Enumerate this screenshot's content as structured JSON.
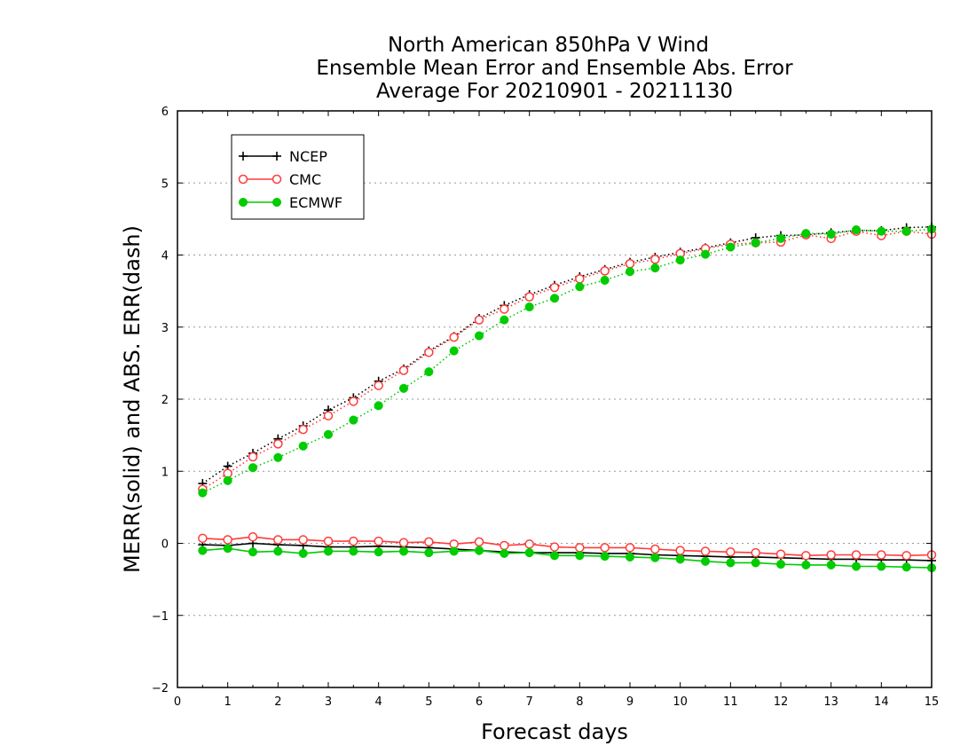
{
  "chart_data": {
    "type": "line",
    "title": [
      "North American 850hPa V Wind",
      "Ensemble Mean Error and Ensemble Abs. Error",
      "Average For 20210901 - 20211130"
    ],
    "xlabel": "Forecast days",
    "ylabel": "MERR(solid) and ABS. ERR(dash)",
    "xlim": [
      0,
      15
    ],
    "ylim": [
      -2,
      6
    ],
    "xticks": [
      "0",
      "1",
      "2",
      "3",
      "4",
      "5",
      "6",
      "7",
      "8",
      "9",
      "10",
      "11",
      "12",
      "13",
      "14",
      "15"
    ],
    "yticks": [
      "−2",
      "−1",
      "0",
      "1",
      "2",
      "3",
      "4",
      "5",
      "6"
    ],
    "grid": "horizontal dotted",
    "legend_position": "top-left",
    "x": [
      0.5,
      1,
      1.5,
      2,
      2.5,
      3,
      3.5,
      4,
      4.5,
      5,
      5.5,
      6,
      6.5,
      7,
      7.5,
      8,
      8.5,
      9,
      9.5,
      10,
      10.5,
      11,
      11.5,
      12,
      12.5,
      13,
      13.5,
      14,
      14.5,
      15
    ],
    "series": [
      {
        "name": "NCEP",
        "color": "#000000",
        "marker": "plus",
        "merr": [
          -0.02,
          -0.03,
          0.0,
          -0.02,
          -0.03,
          -0.05,
          -0.05,
          -0.04,
          -0.05,
          -0.06,
          -0.08,
          -0.1,
          -0.12,
          -0.13,
          -0.13,
          -0.13,
          -0.14,
          -0.14,
          -0.16,
          -0.17,
          -0.18,
          -0.19,
          -0.19,
          -0.2,
          -0.21,
          -0.22,
          -0.22,
          -0.23,
          -0.23,
          -0.24
        ],
        "abs_err": [
          0.83,
          1.07,
          1.25,
          1.45,
          1.63,
          1.85,
          2.02,
          2.25,
          2.42,
          2.67,
          2.87,
          3.12,
          3.3,
          3.45,
          3.58,
          3.7,
          3.8,
          3.9,
          3.97,
          4.04,
          4.1,
          4.17,
          4.24,
          4.27,
          4.28,
          4.31,
          4.34,
          4.34,
          4.38,
          4.39
        ]
      },
      {
        "name": "CMC",
        "color": "#ff3b3b",
        "marker": "open-circle",
        "merr": [
          0.07,
          0.05,
          0.09,
          0.05,
          0.05,
          0.03,
          0.03,
          0.03,
          0.01,
          0.02,
          -0.01,
          0.02,
          -0.03,
          -0.01,
          -0.05,
          -0.06,
          -0.06,
          -0.06,
          -0.08,
          -0.1,
          -0.11,
          -0.12,
          -0.13,
          -0.15,
          -0.17,
          -0.16,
          -0.16,
          -0.16,
          -0.17,
          -0.16
        ],
        "abs_err": [
          0.75,
          0.97,
          1.2,
          1.38,
          1.58,
          1.77,
          1.97,
          2.19,
          2.4,
          2.65,
          2.86,
          3.1,
          3.25,
          3.42,
          3.55,
          3.67,
          3.78,
          3.88,
          3.94,
          4.02,
          4.09,
          4.15,
          4.17,
          4.18,
          4.28,
          4.23,
          4.33,
          4.27,
          4.33,
          4.29
        ]
      },
      {
        "name": "ECMWF",
        "color": "#00cc00",
        "marker": "filled-circle",
        "merr": [
          -0.1,
          -0.07,
          -0.12,
          -0.11,
          -0.14,
          -0.11,
          -0.11,
          -0.12,
          -0.11,
          -0.13,
          -0.11,
          -0.1,
          -0.14,
          -0.13,
          -0.17,
          -0.17,
          -0.18,
          -0.19,
          -0.2,
          -0.22,
          -0.25,
          -0.27,
          -0.27,
          -0.29,
          -0.3,
          -0.3,
          -0.32,
          -0.32,
          -0.33,
          -0.34
        ],
        "abs_err": [
          0.7,
          0.87,
          1.05,
          1.19,
          1.35,
          1.51,
          1.71,
          1.91,
          2.15,
          2.38,
          2.67,
          2.88,
          3.1,
          3.28,
          3.4,
          3.56,
          3.65,
          3.77,
          3.82,
          3.93,
          4.01,
          4.11,
          4.17,
          4.23,
          4.3,
          4.29,
          4.35,
          4.33,
          4.33,
          4.36
        ]
      }
    ]
  }
}
